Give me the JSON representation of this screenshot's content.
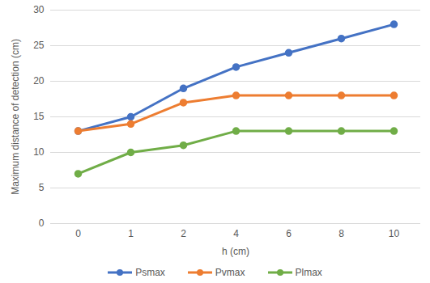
{
  "chart_data": {
    "type": "line",
    "x_label": "h (cm)",
    "y_label": "Maximum distance of detection (cm)",
    "categories": [
      "0",
      "1",
      "2",
      "4",
      "6",
      "8",
      "10"
    ],
    "series": [
      {
        "name": "Psmax",
        "color": "#4472c4",
        "marker": "circle",
        "line_style": "solid",
        "values": [
          13,
          15,
          19,
          22,
          24,
          26,
          28
        ]
      },
      {
        "name": "Pvmax",
        "color": "#ed7d31",
        "marker": "circle",
        "line_style": "solid",
        "values": [
          13,
          14,
          17,
          18,
          18,
          18,
          18
        ]
      },
      {
        "name": "Plmax",
        "color": "#70ad47",
        "marker": "circle",
        "line_style": "solid",
        "values": [
          7,
          10,
          11,
          13,
          13,
          13,
          13
        ]
      }
    ],
    "ylim": [
      0,
      30
    ],
    "yticks": [
      0,
      5,
      10,
      15,
      20,
      25,
      30
    ],
    "grid": true,
    "legend": "bottom"
  }
}
